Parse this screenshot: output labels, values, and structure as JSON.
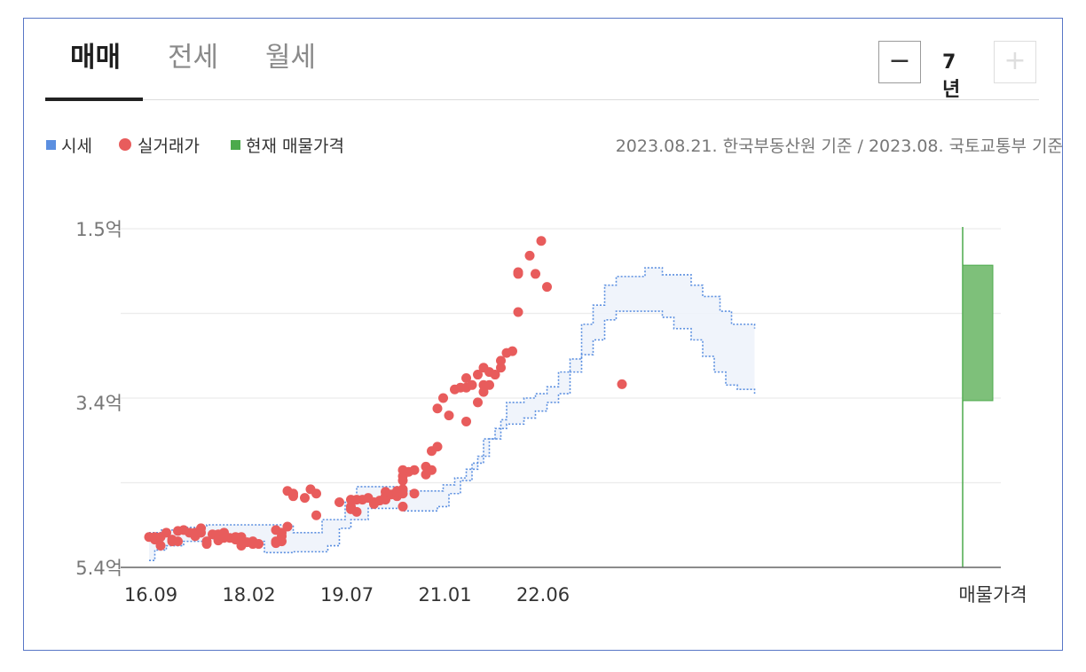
{
  "tabs": [
    {
      "label": "매매",
      "active": true
    },
    {
      "label": "전세",
      "active": false
    },
    {
      "label": "월세",
      "active": false
    }
  ],
  "zoom": {
    "minus_label": "−",
    "value_label": "7년",
    "plus_label": "+"
  },
  "legend": [
    {
      "label": "시세",
      "color": "#5b8fe0",
      "shape": "square"
    },
    {
      "label": "실거래가",
      "color": "#e85c5c",
      "shape": "circle"
    },
    {
      "label": "현재 매물가격",
      "color": "#4caa4c",
      "shape": "square"
    }
  ],
  "source_note": "2023.08.21. 한국부동산원 기준 / 2023.08. 국토교통부 기준",
  "chart_data": {
    "type": "scatter",
    "x_tick_labels": [
      "16.09",
      "18.02",
      "19.07",
      "21.01",
      "22.06"
    ],
    "x_extra_label": "매물가격",
    "y_tick_labels": [
      "5.4억",
      "3.4억",
      "1.5억"
    ],
    "y_ticks": [
      1.5,
      3.4,
      5.4
    ],
    "ylim": [
      1.5,
      5.4
    ],
    "x_unit": "months since 16.09",
    "price_band": {
      "name": "시세",
      "upper": [
        [
          0,
          1.9
        ],
        [
          2,
          1.9
        ],
        [
          2,
          1.93
        ],
        [
          6,
          1.93
        ],
        [
          6,
          1.96
        ],
        [
          10,
          1.96
        ],
        [
          10,
          1.99
        ],
        [
          25,
          1.99
        ],
        [
          25,
          1.9
        ],
        [
          30,
          1.9
        ],
        [
          30,
          2.05
        ],
        [
          34,
          2.05
        ],
        [
          34,
          2.25
        ],
        [
          36,
          2.25
        ],
        [
          36,
          2.43
        ],
        [
          44,
          2.43
        ],
        [
          44,
          2.38
        ],
        [
          51,
          2.38
        ],
        [
          51,
          2.45
        ],
        [
          53,
          2.45
        ],
        [
          53,
          2.53
        ],
        [
          55,
          2.53
        ],
        [
          55,
          2.63
        ],
        [
          57,
          2.63
        ],
        [
          57,
          2.78
        ],
        [
          59,
          2.78
        ],
        [
          59,
          2.98
        ],
        [
          61,
          2.98
        ],
        [
          61,
          3.2
        ],
        [
          62,
          3.2
        ],
        [
          62,
          3.4
        ],
        [
          65,
          3.4
        ],
        [
          65,
          3.45
        ],
        [
          67,
          3.45
        ],
        [
          67,
          3.5
        ],
        [
          69,
          3.5
        ],
        [
          69,
          3.58
        ],
        [
          71,
          3.58
        ],
        [
          71,
          3.75
        ],
        [
          73,
          3.75
        ],
        [
          73,
          3.9
        ],
        [
          75,
          3.9
        ],
        [
          75,
          4.3
        ],
        [
          77,
          4.3
        ],
        [
          77,
          4.52
        ],
        [
          79,
          4.52
        ],
        [
          79,
          4.75
        ],
        [
          81,
          4.75
        ],
        [
          81,
          4.85
        ],
        [
          86,
          4.85
        ],
        [
          86,
          4.95
        ],
        [
          89,
          4.95
        ],
        [
          89,
          4.87
        ],
        [
          94,
          4.87
        ],
        [
          94,
          4.75
        ],
        [
          96,
          4.75
        ],
        [
          96,
          4.62
        ],
        [
          99,
          4.62
        ],
        [
          99,
          4.45
        ],
        [
          101,
          4.45
        ],
        [
          101,
          4.3
        ],
        [
          105,
          4.3
        ],
        [
          105,
          4.25
        ]
      ],
      "lower": [
        [
          0,
          1.58
        ],
        [
          1,
          1.58
        ],
        [
          1,
          1.7
        ],
        [
          3,
          1.7
        ],
        [
          3,
          1.75
        ],
        [
          6,
          1.75
        ],
        [
          6,
          1.8
        ],
        [
          10,
          1.8
        ],
        [
          10,
          1.83
        ],
        [
          18,
          1.83
        ],
        [
          18,
          1.8
        ],
        [
          20,
          1.8
        ],
        [
          20,
          1.67
        ],
        [
          25,
          1.67
        ],
        [
          25,
          1.68
        ],
        [
          31,
          1.68
        ],
        [
          31,
          1.75
        ],
        [
          33,
          1.75
        ],
        [
          33,
          1.95
        ],
        [
          35,
          1.95
        ],
        [
          35,
          2.05
        ],
        [
          38,
          2.05
        ],
        [
          38,
          2.18
        ],
        [
          44,
          2.18
        ],
        [
          44,
          2.15
        ],
        [
          50,
          2.15
        ],
        [
          50,
          2.2
        ],
        [
          52,
          2.2
        ],
        [
          52,
          2.35
        ],
        [
          54,
          2.35
        ],
        [
          54,
          2.5
        ],
        [
          56,
          2.5
        ],
        [
          56,
          2.7
        ],
        [
          58,
          2.7
        ],
        [
          58,
          2.98
        ],
        [
          60,
          2.98
        ],
        [
          60,
          3.1
        ],
        [
          62,
          3.1
        ],
        [
          62,
          3.15
        ],
        [
          65,
          3.15
        ],
        [
          65,
          3.22
        ],
        [
          67,
          3.22
        ],
        [
          67,
          3.3
        ],
        [
          69,
          3.3
        ],
        [
          69,
          3.4
        ],
        [
          71,
          3.4
        ],
        [
          71,
          3.5
        ],
        [
          73,
          3.5
        ],
        [
          73,
          3.75
        ],
        [
          75,
          3.75
        ],
        [
          75,
          3.95
        ],
        [
          77,
          3.95
        ],
        [
          77,
          4.12
        ],
        [
          79,
          4.12
        ],
        [
          79,
          4.35
        ],
        [
          81,
          4.35
        ],
        [
          81,
          4.45
        ],
        [
          89,
          4.45
        ],
        [
          89,
          4.38
        ],
        [
          91,
          4.38
        ],
        [
          91,
          4.25
        ],
        [
          94,
          4.25
        ],
        [
          94,
          4.12
        ],
        [
          96,
          4.12
        ],
        [
          96,
          3.93
        ],
        [
          98,
          3.93
        ],
        [
          98,
          3.75
        ],
        [
          100,
          3.75
        ],
        [
          100,
          3.6
        ],
        [
          102,
          3.6
        ],
        [
          102,
          3.55
        ],
        [
          105,
          3.55
        ],
        [
          105,
          3.5
        ]
      ]
    },
    "transactions": {
      "name": "실거래가",
      "points": [
        [
          0,
          1.85
        ],
        [
          1,
          1.82
        ],
        [
          1,
          1.85
        ],
        [
          2,
          1.85
        ],
        [
          2,
          1.75
        ],
        [
          3,
          1.9
        ],
        [
          4,
          1.82
        ],
        [
          4,
          1.8
        ],
        [
          5,
          1.92
        ],
        [
          5,
          1.8
        ],
        [
          6,
          1.93
        ],
        [
          7,
          1.9
        ],
        [
          8,
          1.86
        ],
        [
          8,
          1.9
        ],
        [
          9,
          1.9
        ],
        [
          9,
          1.95
        ],
        [
          10,
          1.8
        ],
        [
          10,
          1.77
        ],
        [
          11,
          1.88
        ],
        [
          12,
          1.88
        ],
        [
          12,
          1.81
        ],
        [
          13,
          1.84
        ],
        [
          13,
          1.9
        ],
        [
          14,
          1.84
        ],
        [
          15,
          1.85
        ],
        [
          15,
          1.82
        ],
        [
          16,
          1.85
        ],
        [
          16,
          1.79
        ],
        [
          16,
          1.75
        ],
        [
          17,
          1.79
        ],
        [
          18,
          1.77
        ],
        [
          18,
          1.8
        ],
        [
          19,
          1.77
        ],
        [
          22,
          1.78
        ],
        [
          22,
          1.8
        ],
        [
          22,
          1.93
        ],
        [
          23,
          1.9
        ],
        [
          23,
          1.86
        ],
        [
          23,
          1.8
        ],
        [
          24,
          1.97
        ],
        [
          24,
          2.38
        ],
        [
          25,
          2.35
        ],
        [
          25,
          2.32
        ],
        [
          27,
          2.3
        ],
        [
          28,
          2.4
        ],
        [
          29,
          2.35
        ],
        [
          29,
          2.1
        ],
        [
          33,
          2.25
        ],
        [
          35,
          2.28
        ],
        [
          35,
          2.2
        ],
        [
          35,
          2.17
        ],
        [
          36,
          2.14
        ],
        [
          36,
          2.28
        ],
        [
          37,
          2.28
        ],
        [
          38,
          2.3
        ],
        [
          39,
          2.25
        ],
        [
          39,
          2.23
        ],
        [
          40,
          2.27
        ],
        [
          41,
          2.32
        ],
        [
          41,
          2.28
        ],
        [
          41,
          2.37
        ],
        [
          42,
          2.34
        ],
        [
          43,
          2.38
        ],
        [
          43,
          2.32
        ],
        [
          43,
          2.36
        ],
        [
          44,
          2.35
        ],
        [
          44,
          2.4
        ],
        [
          44,
          2.5
        ],
        [
          44,
          2.55
        ],
        [
          45,
          2.6
        ],
        [
          44,
          2.62
        ],
        [
          44,
          2.2
        ],
        [
          46,
          2.62
        ],
        [
          46,
          2.35
        ],
        [
          48,
          2.66
        ],
        [
          48,
          2.57
        ],
        [
          49,
          2.62
        ],
        [
          49,
          2.84
        ],
        [
          50,
          2.89
        ],
        [
          50,
          3.33
        ],
        [
          51,
          3.45
        ],
        [
          52,
          3.25
        ],
        [
          53,
          3.55
        ],
        [
          54,
          3.57
        ],
        [
          55,
          3.68
        ],
        [
          55,
          3.57
        ],
        [
          55,
          3.18
        ],
        [
          56,
          3.6
        ],
        [
          57,
          3.72
        ],
        [
          57,
          3.4
        ],
        [
          58,
          3.8
        ],
        [
          58,
          3.6
        ],
        [
          58,
          3.52
        ],
        [
          59,
          3.75
        ],
        [
          59,
          3.6
        ],
        [
          60,
          3.72
        ],
        [
          61,
          3.88
        ],
        [
          61,
          3.8
        ],
        [
          62,
          3.97
        ],
        [
          63,
          3.99
        ],
        [
          64,
          4.44
        ],
        [
          64,
          4.88
        ],
        [
          64,
          4.9
        ],
        [
          66,
          5.09
        ],
        [
          67,
          4.88
        ],
        [
          68,
          5.26
        ],
        [
          69,
          4.73
        ],
        [
          82,
          3.61
        ]
      ]
    },
    "listing_range": {
      "name": "현재 매물가격",
      "low": 3.42,
      "high": 4.98,
      "label": "매물가격"
    }
  }
}
